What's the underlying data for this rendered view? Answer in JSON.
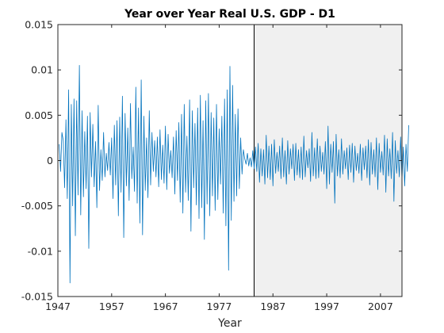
{
  "chart_data": {
    "type": "line",
    "title": "Year over Year Real U.S. GDP - D1",
    "xlabel": "Year",
    "ylabel": "",
    "xlim": [
      1947,
      2011
    ],
    "ylim": [
      -0.015,
      0.015
    ],
    "x_ticks": [
      "1947",
      "1957",
      "1967",
      "1977",
      "1987",
      "1997",
      "2007"
    ],
    "x_tick_values": [
      1947,
      1957,
      1967,
      1977,
      1987,
      1997,
      2007
    ],
    "y_ticks": [
      "0.015",
      "0.01",
      "0.005",
      "0",
      "-0.005",
      "-0.01",
      "-0.015"
    ],
    "y_tick_values": [
      0.015,
      0.01,
      0.005,
      0,
      -0.005,
      -0.01,
      -0.015
    ],
    "grid": false,
    "legend": "none",
    "shaded_region": {
      "x_start": 1983.5,
      "x_end": 2011,
      "color": "#f0f0f0"
    },
    "series": [
      {
        "color": "#0072bd",
        "x_start": 1947.25,
        "x_step": 0.25,
        "values": [
          0.0018,
          -0.0012,
          0.0031,
          0.0022,
          -0.003,
          0.0045,
          -0.0042,
          0.0078,
          -0.0135,
          0.0062,
          -0.005,
          0.0068,
          -0.0083,
          0.0066,
          -0.0038,
          0.0105,
          -0.006,
          0.0055,
          -0.004,
          0.0032,
          -0.0031,
          0.0049,
          -0.0097,
          0.0053,
          -0.0018,
          0.004,
          -0.0029,
          0.0021,
          -0.0052,
          0.0061,
          -0.0033,
          0.0012,
          -0.0022,
          0.0031,
          -0.0018,
          0.0008,
          -0.0011,
          0.002,
          -0.0016,
          0.0025,
          -0.0042,
          0.0039,
          -0.0027,
          0.0044,
          -0.0061,
          0.0048,
          -0.0035,
          0.0071,
          -0.0085,
          0.0052,
          -0.0028,
          0.0036,
          -0.0044,
          0.0063,
          -0.002,
          0.0015,
          -0.0034,
          0.0081,
          -0.0047,
          0.0058,
          -0.0069,
          0.0089,
          -0.0082,
          0.0049,
          -0.0033,
          0.0025,
          -0.0041,
          0.0055,
          -0.0027,
          0.0031,
          -0.0012,
          0.0022,
          -0.0018,
          0.0026,
          -0.0029,
          0.0034,
          -0.0021,
          0.0017,
          -0.0025,
          0.0038,
          -0.0032,
          0.0029,
          -0.0014,
          0.0011,
          -0.0019,
          0.0026,
          -0.0037,
          0.0033,
          -0.0022,
          0.0042,
          -0.0046,
          0.0051,
          -0.0058,
          0.0062,
          -0.0035,
          0.0027,
          -0.0044,
          0.0067,
          -0.0078,
          0.0055,
          -0.003,
          0.0041,
          -0.0049,
          0.0058,
          -0.0064,
          0.0072,
          -0.0052,
          0.0044,
          -0.0087,
          0.0066,
          -0.0048,
          0.0074,
          -0.0061,
          0.0053,
          -0.0039,
          0.0047,
          -0.0055,
          0.0062,
          -0.0043,
          0.0035,
          -0.0026,
          0.0049,
          -0.0058,
          0.0068,
          -0.0072,
          0.0078,
          -0.0121,
          0.0104,
          -0.0066,
          0.0083,
          -0.0045,
          0.0051,
          -0.0039,
          0.0057,
          -0.0031,
          0.0025,
          -0.0015,
          0.0012,
          0.0002,
          -0.0004,
          0.0008,
          -0.0006,
          0.0003,
          -0.0007,
          0.0011,
          -0.0009,
          0.0015,
          -0.0012,
          0.0019,
          -0.0024,
          0.0013,
          -0.0017,
          0.0012,
          -0.0026,
          0.0028,
          -0.0019,
          0.0016,
          -0.0021,
          0.0018,
          -0.0028,
          0.0023,
          -0.0014,
          0.0009,
          -0.0012,
          0.0016,
          -0.002,
          0.0025,
          -0.0018,
          0.0011,
          -0.0026,
          0.0022,
          -0.0015,
          0.0013,
          -0.0009,
          0.0018,
          -0.0022,
          0.0019,
          -0.0016,
          0.0012,
          -0.0019,
          0.0015,
          -0.0021,
          0.0027,
          -0.0018,
          0.0011,
          -0.0008,
          0.0013,
          -0.0023,
          0.0031,
          -0.0017,
          0.0014,
          -0.002,
          0.0024,
          -0.0019,
          0.0016,
          -0.0012,
          0.0009,
          -0.0015,
          0.0021,
          -0.0031,
          0.0038,
          -0.0026,
          0.0018,
          -0.0013,
          0.0021,
          -0.0047,
          0.0029,
          -0.0017,
          0.0012,
          -0.0019,
          0.0024,
          -0.0015,
          0.0011,
          -0.0009,
          0.0014,
          -0.0021,
          0.0017,
          -0.0013,
          0.0019,
          -0.0024,
          0.0016,
          -0.0011,
          0.0008,
          -0.0014,
          0.0018,
          -0.0022,
          0.0014,
          -0.001,
          0.0016,
          -0.0019,
          0.0023,
          -0.0027,
          0.002,
          -0.0015,
          0.0012,
          -0.0018,
          0.0025,
          -0.0032,
          0.0019,
          -0.0013,
          0.001,
          -0.0016,
          0.0028,
          -0.0035,
          0.0024,
          -0.0017,
          0.0013,
          -0.002,
          0.0031,
          -0.0045,
          0.0022,
          -0.0014,
          0.0011,
          -0.0018,
          0.0026,
          -0.0021,
          0.0015,
          -0.0028,
          0.0018,
          -0.0012,
          0.0039
        ]
      }
    ]
  }
}
